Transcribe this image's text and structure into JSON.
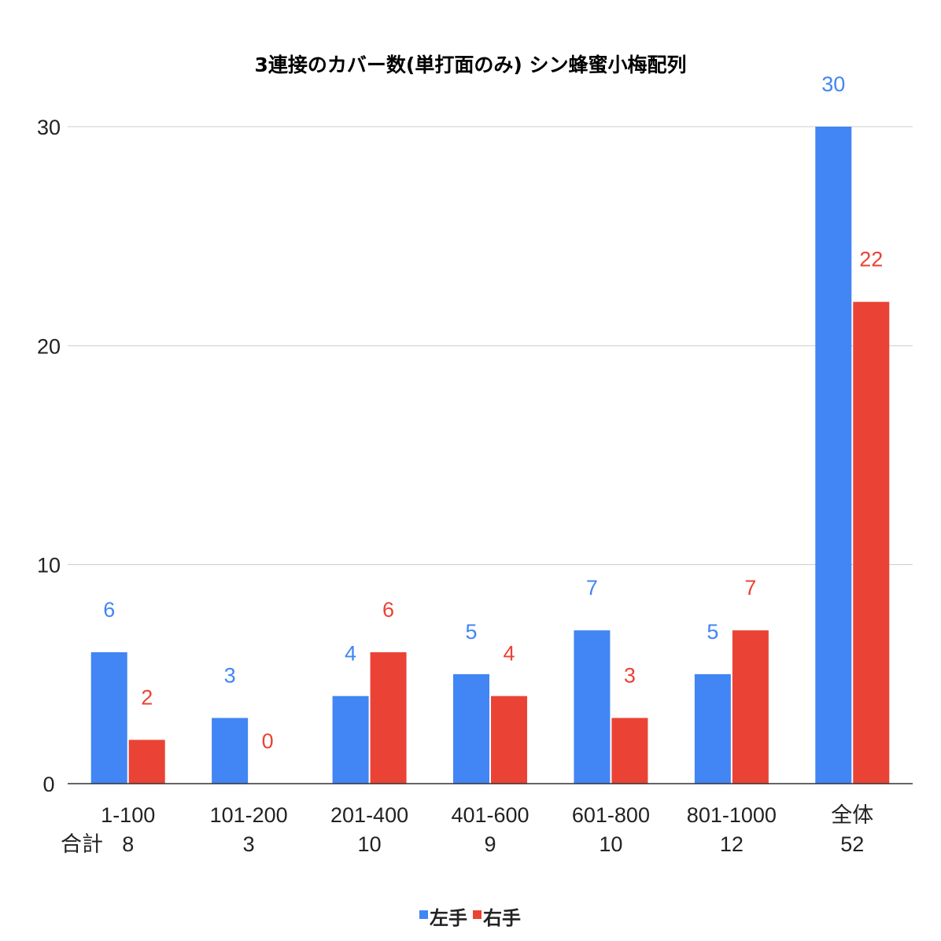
{
  "chart_data": {
    "type": "bar",
    "title": "3連接のカバー数(単打面のみ) シン蜂蜜小梅配列",
    "categories": [
      "1-100",
      "101-200",
      "201-400",
      "401-600",
      "601-800",
      "801-1000",
      "全体"
    ],
    "totals_label": "合計",
    "totals": [
      "8",
      "3",
      "10",
      "9",
      "10",
      "12",
      "52"
    ],
    "series": [
      {
        "name": "左手",
        "color": "#4285f4",
        "values": [
          6,
          3,
          4,
          5,
          7,
          5,
          30
        ]
      },
      {
        "name": "右手",
        "color": "#ea4335",
        "values": [
          2,
          0,
          6,
          4,
          3,
          7,
          22
        ]
      }
    ],
    "ylim": [
      0,
      30
    ],
    "yticks": [
      "0",
      "10",
      "20",
      "30"
    ],
    "xlabel": "",
    "ylabel": "",
    "grid": true,
    "legend": "bottom"
  }
}
